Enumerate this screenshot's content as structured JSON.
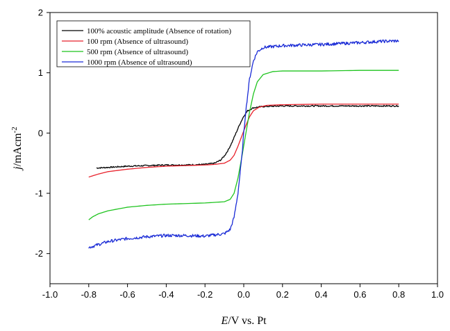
{
  "chart_data": {
    "type": "line",
    "xlabel_italic": "E",
    "xlabel_rest": "/V vs. Pt",
    "ylabel_italic": "j",
    "ylabel_rest": "/mAcm",
    "ylabel_sup": "-2",
    "xlim": [
      -1.0,
      1.0
    ],
    "ylim": [
      -2.5,
      2.0
    ],
    "x_ticks": [
      -1.0,
      -0.8,
      -0.6,
      -0.4,
      -0.2,
      0.0,
      0.2,
      0.4,
      0.6,
      0.8,
      1.0
    ],
    "x_tick_labels": [
      "-1.0",
      "-0.8",
      "-0.6",
      "-0.4",
      "-0.2",
      "0.0",
      "0.2",
      "0.4",
      "0.6",
      "0.8",
      "1.0"
    ],
    "y_ticks": [
      -2,
      -1,
      0,
      1,
      2
    ],
    "y_tick_labels": [
      "-2",
      "-1",
      "0",
      "1",
      "2"
    ],
    "legend_position": "top-left",
    "grid": false,
    "series": [
      {
        "name": "100% acoustic amplitude (Absence of rotation)",
        "color": "#000000",
        "noisy": true,
        "points": [
          [
            -0.76,
            -0.58
          ],
          [
            -0.7,
            -0.57
          ],
          [
            -0.6,
            -0.55
          ],
          [
            -0.5,
            -0.54
          ],
          [
            -0.4,
            -0.53
          ],
          [
            -0.3,
            -0.53
          ],
          [
            -0.2,
            -0.52
          ],
          [
            -0.15,
            -0.5
          ],
          [
            -0.12,
            -0.45
          ],
          [
            -0.1,
            -0.38
          ],
          [
            -0.08,
            -0.28
          ],
          [
            -0.06,
            -0.15
          ],
          [
            -0.04,
            0.0
          ],
          [
            -0.02,
            0.15
          ],
          [
            0.0,
            0.28
          ],
          [
            0.02,
            0.37
          ],
          [
            0.05,
            0.42
          ],
          [
            0.1,
            0.44
          ],
          [
            0.2,
            0.45
          ],
          [
            0.3,
            0.45
          ],
          [
            0.4,
            0.45
          ],
          [
            0.5,
            0.45
          ],
          [
            0.6,
            0.45
          ],
          [
            0.7,
            0.45
          ],
          [
            0.8,
            0.45
          ]
        ]
      },
      {
        "name": "100 rpm (Absence of ultrasound)",
        "color": "#e8202a",
        "noisy": false,
        "points": [
          [
            -0.8,
            -0.73
          ],
          [
            -0.75,
            -0.68
          ],
          [
            -0.7,
            -0.64
          ],
          [
            -0.6,
            -0.6
          ],
          [
            -0.5,
            -0.57
          ],
          [
            -0.4,
            -0.55
          ],
          [
            -0.3,
            -0.54
          ],
          [
            -0.2,
            -0.53
          ],
          [
            -0.15,
            -0.52
          ],
          [
            -0.1,
            -0.5
          ],
          [
            -0.07,
            -0.45
          ],
          [
            -0.05,
            -0.37
          ],
          [
            -0.03,
            -0.22
          ],
          [
            -0.01,
            -0.05
          ],
          [
            0.01,
            0.12
          ],
          [
            0.03,
            0.27
          ],
          [
            0.05,
            0.37
          ],
          [
            0.08,
            0.43
          ],
          [
            0.12,
            0.46
          ],
          [
            0.2,
            0.47
          ],
          [
            0.4,
            0.48
          ],
          [
            0.6,
            0.48
          ],
          [
            0.8,
            0.48
          ]
        ]
      },
      {
        "name": "500 rpm (Absence of ultrasound)",
        "color": "#1fc41f",
        "noisy": false,
        "points": [
          [
            -0.8,
            -1.44
          ],
          [
            -0.78,
            -1.39
          ],
          [
            -0.75,
            -1.34
          ],
          [
            -0.7,
            -1.29
          ],
          [
            -0.6,
            -1.23
          ],
          [
            -0.5,
            -1.2
          ],
          [
            -0.4,
            -1.18
          ],
          [
            -0.3,
            -1.17
          ],
          [
            -0.2,
            -1.16
          ],
          [
            -0.1,
            -1.14
          ],
          [
            -0.07,
            -1.1
          ],
          [
            -0.05,
            -1.0
          ],
          [
            -0.03,
            -0.75
          ],
          [
            -0.01,
            -0.4
          ],
          [
            0.01,
            -0.02
          ],
          [
            0.03,
            0.35
          ],
          [
            0.05,
            0.65
          ],
          [
            0.07,
            0.85
          ],
          [
            0.1,
            0.97
          ],
          [
            0.15,
            1.02
          ],
          [
            0.2,
            1.03
          ],
          [
            0.4,
            1.03
          ],
          [
            0.6,
            1.04
          ],
          [
            0.8,
            1.04
          ]
        ]
      },
      {
        "name": "1000 rpm (Absence of ultrasound)",
        "color": "#1a2bd6",
        "noisy": true,
        "points": [
          [
            -0.8,
            -1.9
          ],
          [
            -0.75,
            -1.85
          ],
          [
            -0.7,
            -1.8
          ],
          [
            -0.6,
            -1.75
          ],
          [
            -0.5,
            -1.72
          ],
          [
            -0.4,
            -1.7
          ],
          [
            -0.3,
            -1.7
          ],
          [
            -0.2,
            -1.71
          ],
          [
            -0.1,
            -1.67
          ],
          [
            -0.07,
            -1.6
          ],
          [
            -0.05,
            -1.4
          ],
          [
            -0.03,
            -1.0
          ],
          [
            -0.01,
            -0.4
          ],
          [
            0.0,
            0.0
          ],
          [
            0.01,
            0.35
          ],
          [
            0.03,
            0.9
          ],
          [
            0.05,
            1.2
          ],
          [
            0.07,
            1.35
          ],
          [
            0.1,
            1.42
          ],
          [
            0.2,
            1.45
          ],
          [
            0.4,
            1.47
          ],
          [
            0.6,
            1.5
          ],
          [
            0.7,
            1.52
          ],
          [
            0.8,
            1.53
          ]
        ]
      }
    ]
  }
}
